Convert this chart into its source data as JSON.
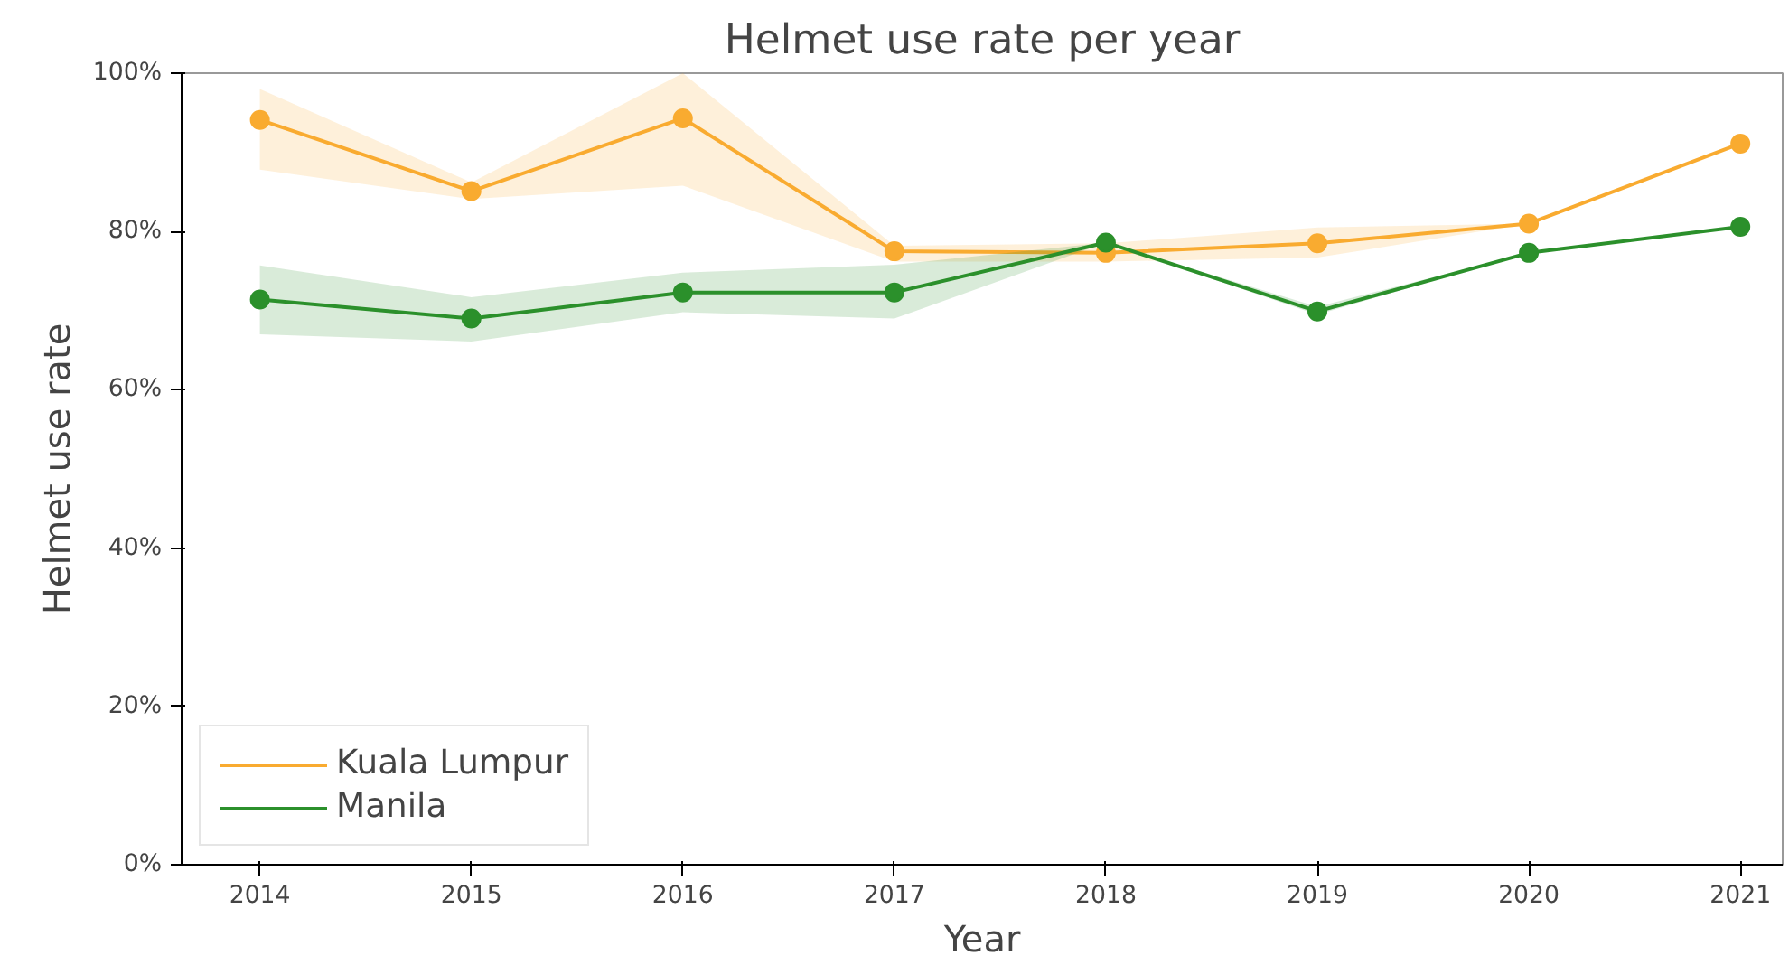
{
  "chart_data": {
    "type": "line",
    "title": "Helmet use rate per year",
    "xlabel": "Year",
    "ylabel": "Helmet use rate",
    "x": [
      2014,
      2015,
      2016,
      2017,
      2018,
      2019,
      2020,
      2021
    ],
    "series": [
      {
        "name": "Kuala Lumpur",
        "color": "#f9ab30",
        "values": [
          94.1,
          85.1,
          94.3,
          77.5,
          77.3,
          78.5,
          81.0,
          91.1
        ],
        "lower": [
          87.8,
          84.1,
          85.8,
          76.2,
          76.2,
          76.7,
          81.0,
          91.1
        ],
        "upper": [
          98.0,
          86.2,
          100.0,
          78.2,
          78.5,
          80.5,
          81.0,
          91.1
        ]
      },
      {
        "name": "Manila",
        "color": "#2b902b",
        "values": [
          71.4,
          69.0,
          72.3,
          72.3,
          78.6,
          69.9,
          77.3,
          80.6
        ],
        "lower": [
          67.0,
          66.1,
          69.8,
          69.0,
          78.6,
          69.5,
          77.3,
          80.6
        ],
        "upper": [
          75.7,
          71.7,
          74.8,
          75.8,
          78.6,
          70.5,
          77.3,
          80.6
        ]
      }
    ],
    "xlim": [
      2013.63,
      2021.2
    ],
    "xticks": [
      2014,
      2015,
      2016,
      2017,
      2018,
      2019,
      2020,
      2021
    ],
    "ylim": [
      0,
      100
    ],
    "yticks": [
      {
        "value": 0,
        "label": "0%"
      },
      {
        "value": 20,
        "label": "20%"
      },
      {
        "value": 40,
        "label": "40%"
      },
      {
        "value": 60,
        "label": "60%"
      },
      {
        "value": 80,
        "label": "80%"
      },
      {
        "value": 100,
        "label": "100%"
      }
    ],
    "grid": false,
    "legend": "bottom left",
    "marker": "circle",
    "line_style": "solid"
  }
}
